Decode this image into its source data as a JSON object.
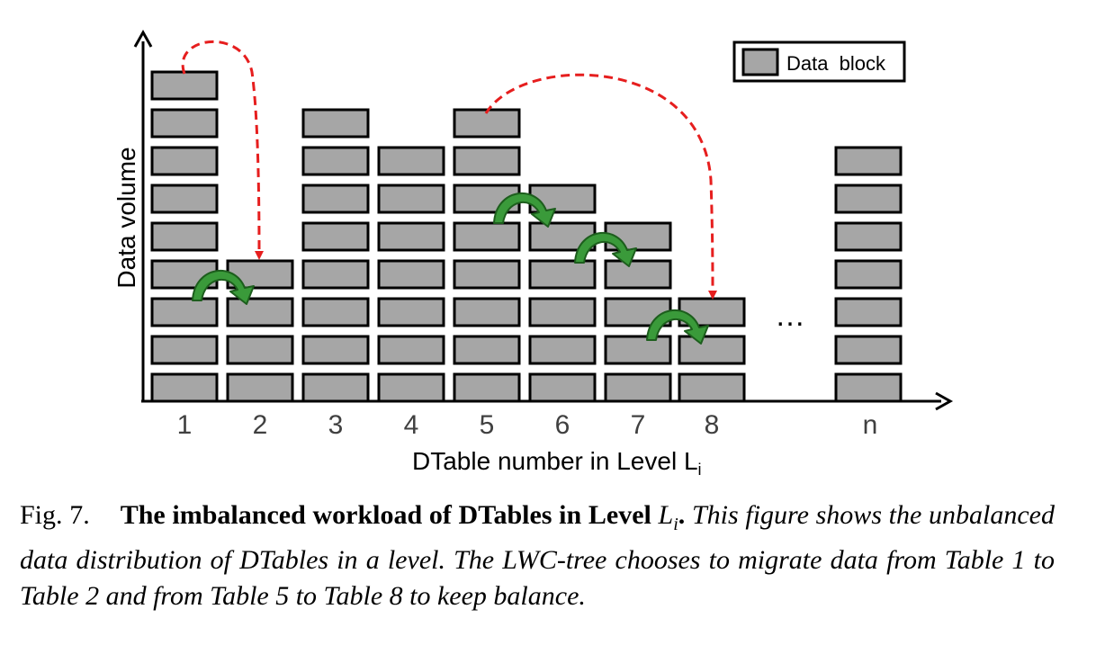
{
  "figure": {
    "y_axis_label": "Data volume",
    "x_axis_label_main": "DTable number in Level L",
    "x_axis_label_sub": "i",
    "legend_label": "Data block",
    "ellipsis": "…",
    "columns": [
      {
        "label": "1",
        "blocks": 9
      },
      {
        "label": "2",
        "blocks": 4
      },
      {
        "label": "3",
        "blocks": 8
      },
      {
        "label": "4",
        "blocks": 7
      },
      {
        "label": "5",
        "blocks": 8
      },
      {
        "label": "6",
        "blocks": 6
      },
      {
        "label": "7",
        "blocks": 5
      },
      {
        "label": "8",
        "blocks": 3
      },
      {
        "label": "n",
        "blocks": 7
      }
    ],
    "colors": {
      "block_fill": "#a6a6a6",
      "block_stroke": "#000000",
      "migration_arrow": "#e61e1e",
      "shift_arrow": "#3a9a3a"
    }
  },
  "caption": {
    "label": "Fig. 7.",
    "title": "The imbalanced workload of DTables in Level",
    "math_symbol": "L",
    "math_sub": "i",
    "period": ".",
    "description": "This figure shows the unbalanced data distribution of DTables in a level. The LWC-tree chooses to migrate data from Table 1 to Table 2 and from Table 5 to Table 8 to keep balance."
  }
}
